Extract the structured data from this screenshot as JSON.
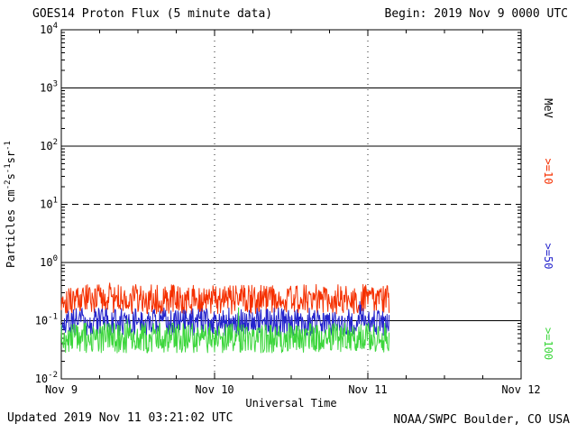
{
  "footer": {
    "updated": "Updated 2019 Nov 11 03:21:02 UTC",
    "credit": "NOAA/SWPC Boulder, CO USA"
  },
  "chart_data": {
    "type": "line",
    "title": "GOES14 Proton Flux (5 minute data)",
    "begin_label": "Begin: 2019 Nov 9 0000 UTC",
    "xlabel": "Universal Time",
    "ylabel_parts": [
      {
        "text": "Particles cm"
      },
      {
        "sup": "-2"
      },
      {
        "text": "s"
      },
      {
        "sup": "-1"
      },
      {
        "text": "sr"
      },
      {
        "sup": "-1"
      }
    ],
    "x_ticks": [
      "Nov 9",
      "Nov 10",
      "Nov 11",
      "Nov 12"
    ],
    "x_range_days": [
      0,
      3
    ],
    "y_log_range": [
      -2,
      4
    ],
    "y_tick_exponents": [
      4,
      3,
      2,
      1,
      0,
      -1,
      -2
    ],
    "solid_gridlines_exp": [
      3,
      2,
      0,
      -1
    ],
    "dashed_gridlines_exp": [
      1
    ],
    "day_gridlines": [
      1,
      2
    ],
    "grid_on": true,
    "legend_position": "right",
    "right_axis_label": "MeV",
    "axis_color": "#000000",
    "sample_minutes": 5,
    "data_end_day": 2.14,
    "series": [
      {
        "name": ">=10",
        "color": "#f53000",
        "approx_flux_range": [
          0.13,
          0.42
        ],
        "spike_prob": 0.012,
        "spike_log_amp": 0.22,
        "seed": 101
      },
      {
        "name": ">=50",
        "color": "#2424cc",
        "approx_flux_range": [
          0.055,
          0.165
        ],
        "spike_prob": 0.01,
        "spike_log_amp": 0.18,
        "seed": 202
      },
      {
        "name": ">=100",
        "color": "#3cd63c",
        "approx_flux_range": [
          0.028,
          0.092
        ],
        "spike_prob": 0.006,
        "spike_log_amp": 0.55,
        "seed": 303
      }
    ]
  }
}
